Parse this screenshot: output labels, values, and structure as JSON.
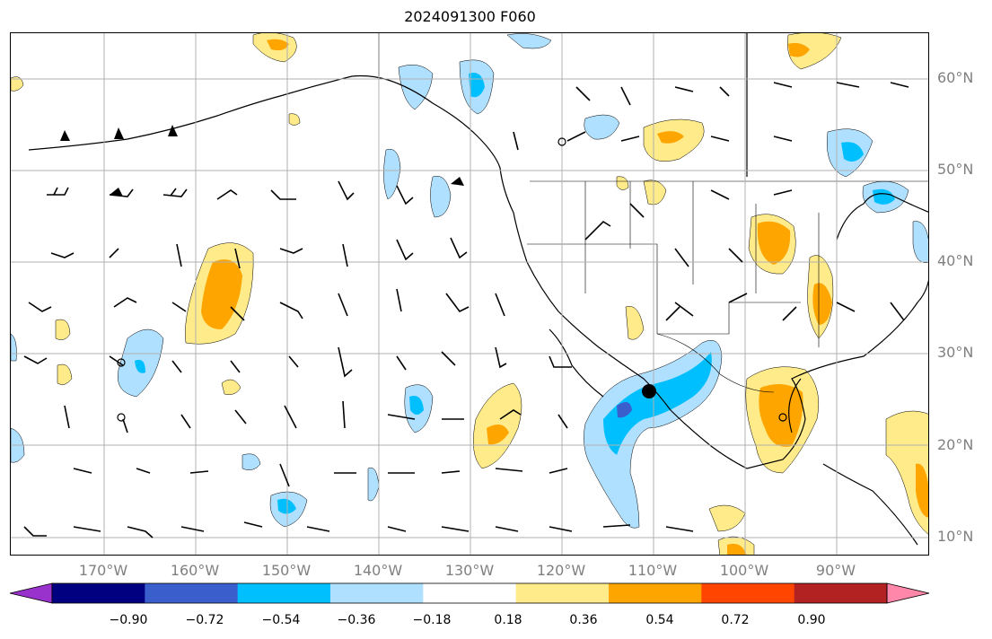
{
  "title": "2024091300 F060",
  "map": {
    "lat_labels": [
      "60°N",
      "50°N",
      "40°N",
      "30°N",
      "20°N",
      "10°N"
    ],
    "lon_labels": [
      "170°W",
      "160°W",
      "150°W",
      "140°W",
      "130°W",
      "120°W",
      "110°W",
      "100°W",
      "90°W"
    ],
    "grid": true,
    "field": "anomaly (shaded) with wind barbs",
    "colorbar": {
      "extend": "both",
      "tick_labels": [
        "−0.90",
        "−0.72",
        "−0.54",
        "−0.36",
        "−0.18",
        "0.18",
        "0.36",
        "0.54",
        "0.72",
        "0.90"
      ],
      "colors": [
        "#9932cc",
        "#000080",
        "#3a5fcd",
        "#00bfff",
        "#b0e0ff",
        "#ffffff",
        "#ffeb8a",
        "#ffa500",
        "#ff4500",
        "#b22222",
        "#ff88aa"
      ]
    },
    "colors": {
      "coast": "#000000",
      "grid": "#b0b0b0",
      "label": "#808080"
    }
  }
}
